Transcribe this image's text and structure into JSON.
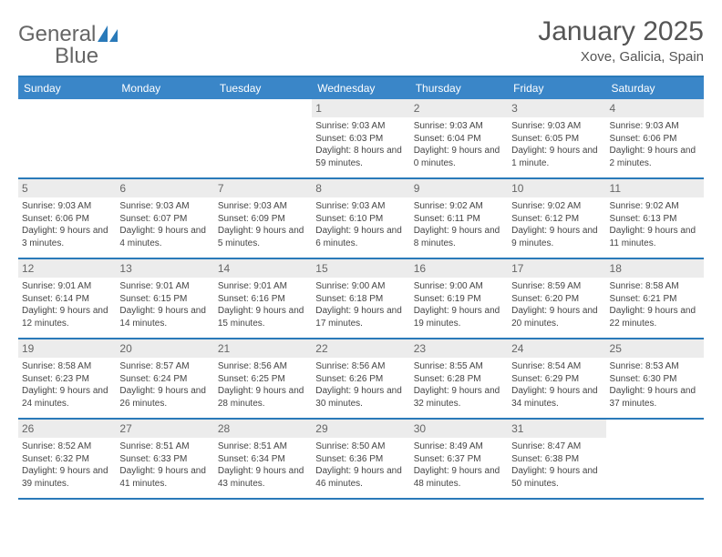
{
  "brand": {
    "word1": "General",
    "word2": "Blue"
  },
  "title": {
    "month": "January 2025",
    "location": "Xove, Galicia, Spain"
  },
  "colors": {
    "header_bg": "#3a86c8",
    "rule": "#2a7ab9",
    "daynum_bg": "#ececec",
    "text": "#444444",
    "muted": "#666666",
    "white": "#ffffff"
  },
  "day_names": [
    "Sunday",
    "Monday",
    "Tuesday",
    "Wednesday",
    "Thursday",
    "Friday",
    "Saturday"
  ],
  "weeks": [
    [
      {
        "n": "",
        "sr": "",
        "ss": "",
        "dl": ""
      },
      {
        "n": "",
        "sr": "",
        "ss": "",
        "dl": ""
      },
      {
        "n": "",
        "sr": "",
        "ss": "",
        "dl": ""
      },
      {
        "n": "1",
        "sr": "Sunrise: 9:03 AM",
        "ss": "Sunset: 6:03 PM",
        "dl": "Daylight: 8 hours and 59 minutes."
      },
      {
        "n": "2",
        "sr": "Sunrise: 9:03 AM",
        "ss": "Sunset: 6:04 PM",
        "dl": "Daylight: 9 hours and 0 minutes."
      },
      {
        "n": "3",
        "sr": "Sunrise: 9:03 AM",
        "ss": "Sunset: 6:05 PM",
        "dl": "Daylight: 9 hours and 1 minute."
      },
      {
        "n": "4",
        "sr": "Sunrise: 9:03 AM",
        "ss": "Sunset: 6:06 PM",
        "dl": "Daylight: 9 hours and 2 minutes."
      }
    ],
    [
      {
        "n": "5",
        "sr": "Sunrise: 9:03 AM",
        "ss": "Sunset: 6:06 PM",
        "dl": "Daylight: 9 hours and 3 minutes."
      },
      {
        "n": "6",
        "sr": "Sunrise: 9:03 AM",
        "ss": "Sunset: 6:07 PM",
        "dl": "Daylight: 9 hours and 4 minutes."
      },
      {
        "n": "7",
        "sr": "Sunrise: 9:03 AM",
        "ss": "Sunset: 6:09 PM",
        "dl": "Daylight: 9 hours and 5 minutes."
      },
      {
        "n": "8",
        "sr": "Sunrise: 9:03 AM",
        "ss": "Sunset: 6:10 PM",
        "dl": "Daylight: 9 hours and 6 minutes."
      },
      {
        "n": "9",
        "sr": "Sunrise: 9:02 AM",
        "ss": "Sunset: 6:11 PM",
        "dl": "Daylight: 9 hours and 8 minutes."
      },
      {
        "n": "10",
        "sr": "Sunrise: 9:02 AM",
        "ss": "Sunset: 6:12 PM",
        "dl": "Daylight: 9 hours and 9 minutes."
      },
      {
        "n": "11",
        "sr": "Sunrise: 9:02 AM",
        "ss": "Sunset: 6:13 PM",
        "dl": "Daylight: 9 hours and 11 minutes."
      }
    ],
    [
      {
        "n": "12",
        "sr": "Sunrise: 9:01 AM",
        "ss": "Sunset: 6:14 PM",
        "dl": "Daylight: 9 hours and 12 minutes."
      },
      {
        "n": "13",
        "sr": "Sunrise: 9:01 AM",
        "ss": "Sunset: 6:15 PM",
        "dl": "Daylight: 9 hours and 14 minutes."
      },
      {
        "n": "14",
        "sr": "Sunrise: 9:01 AM",
        "ss": "Sunset: 6:16 PM",
        "dl": "Daylight: 9 hours and 15 minutes."
      },
      {
        "n": "15",
        "sr": "Sunrise: 9:00 AM",
        "ss": "Sunset: 6:18 PM",
        "dl": "Daylight: 9 hours and 17 minutes."
      },
      {
        "n": "16",
        "sr": "Sunrise: 9:00 AM",
        "ss": "Sunset: 6:19 PM",
        "dl": "Daylight: 9 hours and 19 minutes."
      },
      {
        "n": "17",
        "sr": "Sunrise: 8:59 AM",
        "ss": "Sunset: 6:20 PM",
        "dl": "Daylight: 9 hours and 20 minutes."
      },
      {
        "n": "18",
        "sr": "Sunrise: 8:58 AM",
        "ss": "Sunset: 6:21 PM",
        "dl": "Daylight: 9 hours and 22 minutes."
      }
    ],
    [
      {
        "n": "19",
        "sr": "Sunrise: 8:58 AM",
        "ss": "Sunset: 6:23 PM",
        "dl": "Daylight: 9 hours and 24 minutes."
      },
      {
        "n": "20",
        "sr": "Sunrise: 8:57 AM",
        "ss": "Sunset: 6:24 PM",
        "dl": "Daylight: 9 hours and 26 minutes."
      },
      {
        "n": "21",
        "sr": "Sunrise: 8:56 AM",
        "ss": "Sunset: 6:25 PM",
        "dl": "Daylight: 9 hours and 28 minutes."
      },
      {
        "n": "22",
        "sr": "Sunrise: 8:56 AM",
        "ss": "Sunset: 6:26 PM",
        "dl": "Daylight: 9 hours and 30 minutes."
      },
      {
        "n": "23",
        "sr": "Sunrise: 8:55 AM",
        "ss": "Sunset: 6:28 PM",
        "dl": "Daylight: 9 hours and 32 minutes."
      },
      {
        "n": "24",
        "sr": "Sunrise: 8:54 AM",
        "ss": "Sunset: 6:29 PM",
        "dl": "Daylight: 9 hours and 34 minutes."
      },
      {
        "n": "25",
        "sr": "Sunrise: 8:53 AM",
        "ss": "Sunset: 6:30 PM",
        "dl": "Daylight: 9 hours and 37 minutes."
      }
    ],
    [
      {
        "n": "26",
        "sr": "Sunrise: 8:52 AM",
        "ss": "Sunset: 6:32 PM",
        "dl": "Daylight: 9 hours and 39 minutes."
      },
      {
        "n": "27",
        "sr": "Sunrise: 8:51 AM",
        "ss": "Sunset: 6:33 PM",
        "dl": "Daylight: 9 hours and 41 minutes."
      },
      {
        "n": "28",
        "sr": "Sunrise: 8:51 AM",
        "ss": "Sunset: 6:34 PM",
        "dl": "Daylight: 9 hours and 43 minutes."
      },
      {
        "n": "29",
        "sr": "Sunrise: 8:50 AM",
        "ss": "Sunset: 6:36 PM",
        "dl": "Daylight: 9 hours and 46 minutes."
      },
      {
        "n": "30",
        "sr": "Sunrise: 8:49 AM",
        "ss": "Sunset: 6:37 PM",
        "dl": "Daylight: 9 hours and 48 minutes."
      },
      {
        "n": "31",
        "sr": "Sunrise: 8:47 AM",
        "ss": "Sunset: 6:38 PM",
        "dl": "Daylight: 9 hours and 50 minutes."
      },
      {
        "n": "",
        "sr": "",
        "ss": "",
        "dl": ""
      }
    ]
  ]
}
